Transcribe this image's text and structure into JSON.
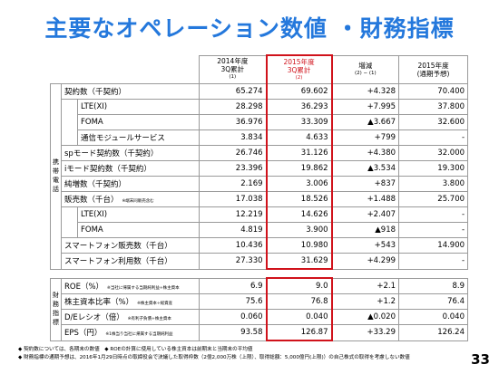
{
  "title": "主要なオペレーション数値 ・財務指標",
  "header": [
    {
      "lines": [
        "2014年度",
        "3Q累計"
      ],
      "note": "(1)"
    },
    {
      "lines": [
        "2015年度",
        "3Q累計"
      ],
      "note": "(2)"
    },
    {
      "lines": [
        "増減"
      ],
      "note": "(2) − (1)"
    },
    {
      "lines": [
        "2015年度",
        "(通期予想)"
      ]
    }
  ],
  "sections": [
    {
      "label": "携帯電話",
      "rows": [
        {
          "label": "契約数（千契約）",
          "cells": [
            "65.274",
            "69.602",
            "+4.328",
            "70.400"
          ],
          "children": [
            {
              "label": "LTE(XI)",
              "cells": [
                "28.298",
                "36.293",
                "+7.995",
                "37.800"
              ]
            },
            {
              "label": "FOMA",
              "cells": [
                "36.976",
                "33.309",
                "▲3.667",
                "32.600"
              ]
            },
            {
              "label": "通信モジュールサービス",
              "cells": [
                "3.834",
                "4.633",
                "+799",
                "-"
              ]
            }
          ]
        },
        {
          "label": "spモード契約数（千契約）",
          "cells": [
            "26.746",
            "31.126",
            "+4.380",
            "32.000"
          ]
        },
        {
          "label": "iモード契約数（千契約）",
          "cells": [
            "23.396",
            "19.862",
            "▲3.534",
            "19.300"
          ]
        },
        {
          "label": "純増数（千契約）",
          "cells": [
            "2.169",
            "3.006",
            "+837",
            "3.800"
          ]
        },
        {
          "label": "販売数（千台）",
          "note": "※端末同販売含む",
          "cells": [
            "17.038",
            "18.526",
            "+1.488",
            "25.700"
          ],
          "children": [
            {
              "label": "LTE(XI)",
              "cells": [
                "12.219",
                "14.626",
                "+2.407",
                "-"
              ]
            },
            {
              "label": "FOMA",
              "cells": [
                "4.819",
                "3.900",
                "▲918",
                "-"
              ]
            }
          ]
        },
        {
          "label": "スマートフォン販売数（千台）",
          "cells": [
            "10.436",
            "10.980",
            "+543",
            "14.900"
          ]
        },
        {
          "label": "スマートフォン利用数（千台）",
          "cells": [
            "27.330",
            "31.629",
            "+4.299",
            "-"
          ]
        }
      ]
    },
    {
      "label": "財務指標",
      "rows": [
        {
          "label": "ROE（%）",
          "note": "※当社に帰属する当期純利益÷株主資本",
          "cells": [
            "6.9",
            "9.0",
            "+2.1",
            "8.9"
          ]
        },
        {
          "label": "株主資本比率（%）",
          "note": "※株主資本÷総資産",
          "cells": [
            "75.6",
            "76.8",
            "+1.2",
            "76.4"
          ]
        },
        {
          "label": "D/Eレシオ（倍）",
          "note": "※有利子負債÷株主資本",
          "cells": [
            "0.060",
            "0.040",
            "▲0.020",
            "0.040"
          ]
        },
        {
          "label": "EPS（円）",
          "note": "※1株当り当社に帰属する当期純利益",
          "cells": [
            "93.58",
            "126.87",
            "+33.29",
            "126.24"
          ]
        }
      ]
    }
  ],
  "notes": [
    "◆ 契約数については、各期末の数値　◆ ROEの計算に使用している株主資本は前期末と当期末の平均値",
    "◆ 財務指標の通期予想は、2016年1月29日時点の取締役会で決議した取得枠数（2億2,000万株（上限）、取得総額：5,000億円(上限)）の自己株式の取得を考慮しない数値"
  ],
  "page_number": "33"
}
